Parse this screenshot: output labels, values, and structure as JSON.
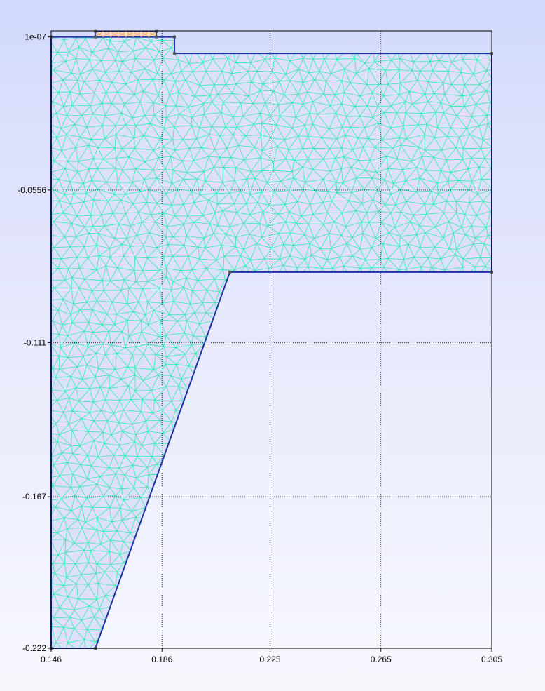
{
  "colors": {
    "background_top": "#d3d9fb",
    "background_bottom": "#f7f8fe",
    "domain_fill": "#dde0f8",
    "mesh_edges": "#2ee8b0",
    "boundary": "#1f2fa8",
    "grid": "#000000",
    "coil_fill": "#f3e2c8",
    "coil_edges": "#ff9955"
  },
  "plot": {
    "x_ticks": [
      "0.146",
      "0.186",
      "0.225",
      "0.265",
      "0.305"
    ],
    "y_ticks": [
      "1e-07",
      "-0.0556",
      "-0.111",
      "-0.167",
      "-0.222"
    ],
    "grid": true
  },
  "geometry": {
    "domain_outline": [
      [
        0.146,
        0
      ],
      [
        0.1905,
        0
      ],
      [
        0.1905,
        -0.006
      ],
      [
        0.305,
        -0.006
      ],
      [
        0.305,
        -0.0854
      ],
      [
        0.2105,
        -0.0854
      ],
      [
        0.162,
        -0.222
      ],
      [
        0.146,
        -0.222
      ]
    ],
    "coil_region": [
      [
        0.162,
        0.002
      ],
      [
        0.184,
        0.002
      ],
      [
        0.184,
        0
      ],
      [
        0.162,
        0
      ]
    ]
  }
}
